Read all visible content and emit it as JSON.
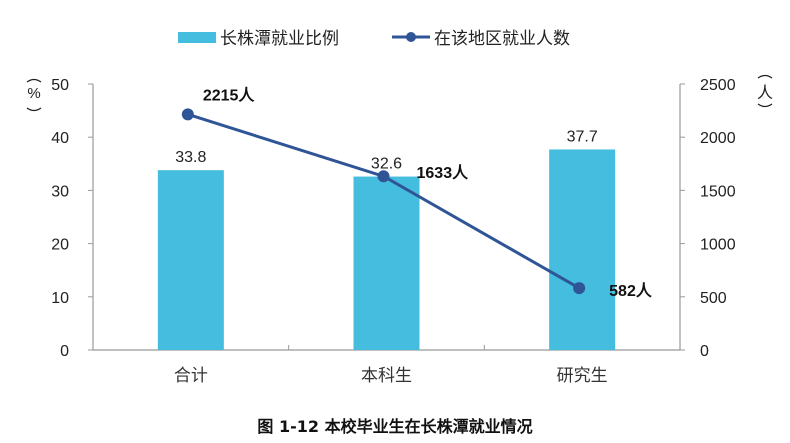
{
  "chart_data": {
    "type": "bar+line",
    "title": "",
    "caption": "图 1-12 本校毕业生在长株潭就业情况",
    "categories": [
      "合计",
      "本科生",
      "研究生"
    ],
    "series": [
      {
        "name": "长株潭就业比例",
        "type": "bar",
        "axis": "left",
        "color": "#45BDDF",
        "values": [
          33.8,
          32.6,
          37.7
        ],
        "labels": [
          "33.8",
          "32.6",
          "37.7"
        ]
      },
      {
        "name": "在该地区就业人数",
        "type": "line",
        "axis": "right",
        "color": "#2F5597",
        "values": [
          2215,
          1633,
          582
        ],
        "labels": [
          "2215人",
          "1633人",
          "582人"
        ]
      }
    ],
    "left_axis": {
      "label": "（%）",
      "ylim": [
        0,
        50
      ],
      "ticks": [
        0,
        10,
        20,
        30,
        40,
        50
      ]
    },
    "right_axis": {
      "label": "（人）",
      "ylim": [
        0,
        2500
      ],
      "ticks": [
        0,
        500,
        1000,
        1500,
        2000,
        2500
      ]
    },
    "legend": {
      "position": "top",
      "items": [
        "长株潭就业比例",
        "在该地区就业人数"
      ]
    },
    "grid": false
  }
}
